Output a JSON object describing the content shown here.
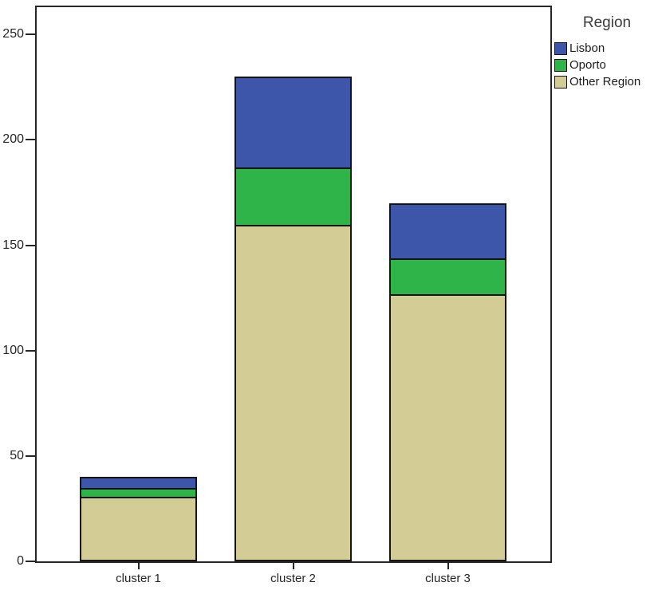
{
  "legend": {
    "title": "Region",
    "items": [
      {
        "label": "Lisbon",
        "color": "#3d56a9"
      },
      {
        "label": "Oporto",
        "color": "#2fb44a"
      },
      {
        "label": "Other Region",
        "color": "#d3cc95"
      }
    ]
  },
  "chart_data": {
    "type": "bar",
    "stacked": true,
    "title": "",
    "xlabel": "",
    "ylabel": "",
    "categories": [
      "cluster 1",
      "cluster 2",
      "cluster 3"
    ],
    "series": [
      {
        "name": "Other Region",
        "color": "#d3cc95",
        "values": [
          30,
          159,
          126
        ]
      },
      {
        "name": "Oporto",
        "color": "#2fb44a",
        "values": [
          4,
          27,
          17
        ]
      },
      {
        "name": "Lisbon",
        "color": "#3d56a9",
        "values": [
          6,
          44,
          27
        ]
      }
    ],
    "totals": [
      40,
      230,
      170
    ],
    "yticks": [
      0,
      50,
      100,
      150,
      200,
      250
    ],
    "ylim": [
      0,
      263
    ],
    "grid": false,
    "legend_title": "Region",
    "legend_position": "top-right-outside",
    "legend_order_top_to_bottom": [
      "Lisbon",
      "Oporto",
      "Other Region"
    ],
    "colors": {
      "bar_outline": "#141414",
      "plot_frame": "#262626",
      "axis_text": "#262626",
      "background": "#ffffff"
    }
  }
}
